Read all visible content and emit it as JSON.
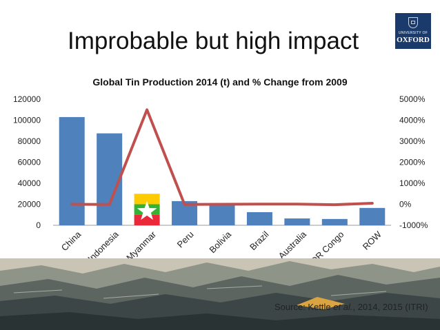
{
  "slide": {
    "title": "Improbable but high impact",
    "logo": {
      "line1": "UNIVERSITY OF",
      "line2": "OXFORD"
    },
    "source": {
      "prefix": "Source: Kettle ",
      "italic": "et al.",
      "suffix": ", 2014, 2015 (ITRI)"
    }
  },
  "chart_data": {
    "type": "bar",
    "title": "Global Tin Production 2014 (t) and % Change from 2009",
    "categories": [
      "China",
      "Indonesia",
      "Myanmar",
      "Peru",
      "Bolivia",
      "Brazil",
      "Australia",
      "DR Congo",
      "ROW"
    ],
    "series": [
      {
        "type": "bar",
        "axis": "left",
        "color": "#4f81bd",
        "values": [
          103000,
          87500,
          30000,
          23000,
          19500,
          12500,
          6500,
          6000,
          16500
        ]
      },
      {
        "type": "line",
        "axis": "right",
        "color": "#c0504d",
        "values": [
          0,
          -10,
          4500,
          -10,
          0,
          10,
          10,
          -20,
          50
        ]
      }
    ],
    "y_left": {
      "min": 0,
      "max": 120000,
      "ticks": [
        "0",
        "20000",
        "40000",
        "60000",
        "80000",
        "100000",
        "120000"
      ]
    },
    "y_right": {
      "min": -1000,
      "max": 5000,
      "ticks": [
        "-1000%",
        "0%",
        "1000%",
        "2000%",
        "3000%",
        "4000%",
        "5000%"
      ]
    },
    "grid": false,
    "legend": "none",
    "flag_bar": {
      "category": "Myanmar",
      "colors": [
        "#fecb00",
        "#34b233",
        "#ea2839"
      ],
      "icon": "star-icon"
    }
  }
}
